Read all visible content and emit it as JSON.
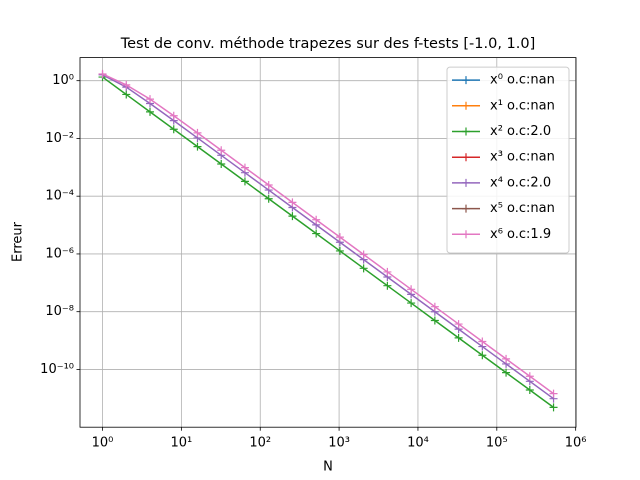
{
  "chart_data": {
    "type": "line",
    "title": "Test de conv. méthode trapezes sur des f-tests [-1.0, 1.0]",
    "xlabel": "N",
    "ylabel": "Erreur",
    "xscale": "log",
    "yscale": "log",
    "grid": true,
    "legend": "upper right",
    "x": [
      1,
      2,
      4,
      8,
      16,
      32,
      64,
      128,
      256,
      512,
      1024,
      2048,
      4096,
      8192,
      16384,
      32768,
      65536,
      131072,
      262144,
      524288
    ],
    "xlim": [
      0.518,
      1010000
    ],
    "ylim": [
      1e-12,
      6.3
    ],
    "xticks": [
      {
        "value": 1,
        "label": "10⁰"
      },
      {
        "value": 10,
        "label": "10¹"
      },
      {
        "value": 100,
        "label": "10²"
      },
      {
        "value": 1000,
        "label": "10³"
      },
      {
        "value": 10000,
        "label": "10⁴"
      },
      {
        "value": 100000,
        "label": "10⁵"
      },
      {
        "value": 1000000,
        "label": "10⁶"
      }
    ],
    "yticks": [
      {
        "value": 1,
        "label": "10⁰"
      },
      {
        "value": 0.01,
        "label": "10⁻²"
      },
      {
        "value": 0.0001,
        "label": "10⁻⁴"
      },
      {
        "value": 1e-06,
        "label": "10⁻⁶"
      },
      {
        "value": 1e-08,
        "label": "10⁻⁸"
      },
      {
        "value": 1e-10,
        "label": "10⁻¹⁰"
      }
    ],
    "series": [
      {
        "name": "x⁰ o.c:nan",
        "color": "#1f77b4",
        "values": [
          null,
          null,
          null,
          null,
          null,
          null,
          null,
          null,
          null,
          null,
          null,
          null,
          null,
          null,
          null,
          null,
          null,
          null,
          null,
          null
        ]
      },
      {
        "name": "x¹ o.c:nan",
        "color": "#ff7f0e",
        "values": [
          null,
          null,
          null,
          null,
          null,
          null,
          null,
          null,
          null,
          null,
          null,
          null,
          null,
          null,
          null,
          null,
          null,
          null,
          null,
          null
        ]
      },
      {
        "name": "x² o.c:2.0",
        "color": "#2ca02c",
        "values": [
          1.333,
          0.3333,
          0.08333,
          0.02083,
          0.005208,
          0.001302,
          0.0003255,
          8.138e-05,
          2.035e-05,
          5.086e-06,
          1.272e-06,
          3.179e-07,
          7.947e-08,
          1.987e-08,
          4.967e-09,
          1.242e-09,
          3.104e-10,
          7.761e-11,
          1.94e-11,
          4.851e-12
        ]
      },
      {
        "name": "x³ o.c:nan",
        "color": "#d62728",
        "values": [
          null,
          null,
          null,
          null,
          null,
          null,
          null,
          null,
          null,
          null,
          null,
          null,
          null,
          null,
          null,
          null,
          null,
          null,
          null,
          null
        ]
      },
      {
        "name": "x⁴ o.c:2.0",
        "color": "#9467bd",
        "values": [
          1.6,
          0.6,
          0.1625,
          0.04141,
          0.0104,
          0.002604,
          0.000651,
          0.0001628,
          4.069e-05,
          1.017e-05,
          2.543e-06,
          6.358e-07,
          1.589e-07,
          3.974e-08,
          9.934e-09,
          2.484e-09,
          6.209e-10,
          1.552e-10,
          3.881e-11,
          9.701e-12
        ]
      },
      {
        "name": "x⁵ o.c:nan",
        "color": "#8c564b",
        "values": [
          null,
          null,
          null,
          null,
          null,
          null,
          null,
          null,
          null,
          null,
          null,
          null,
          null,
          null,
          null,
          null,
          null,
          null,
          null,
          null
        ]
      },
      {
        "name": "x⁶ o.c:1.9",
        "color": "#e377c2",
        "values": [
          1.714,
          0.7143,
          0.2299,
          0.06121,
          0.01554,
          0.003901,
          0.0009766,
          0.0002441,
          6.104e-05,
          1.526e-05,
          3.815e-06,
          9.537e-07,
          2.384e-07,
          5.96e-08,
          1.49e-08,
          3.725e-09,
          9.313e-10,
          2.328e-10,
          5.821e-11,
          1.455e-11
        ]
      }
    ]
  }
}
